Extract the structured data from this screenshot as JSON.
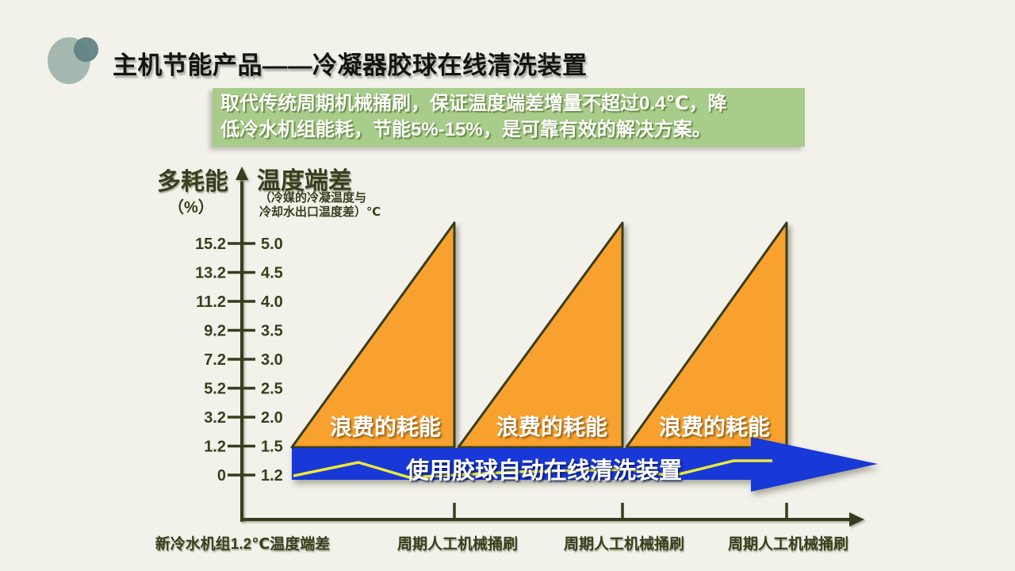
{
  "slide": {
    "title": "主机节能产品——冷凝器胶球在线清洗装置",
    "intro_line1": "取代传统周期机械捅刷，保证温度端差增量不超过0.4℃，降",
    "intro_line2": "低冷水机组能耗，节能5%-15%，是可靠有效的解决方案。"
  },
  "chart": {
    "left_axis_title": "多耗能",
    "left_axis_unit": "（%）",
    "right_axis_title": "温度端差",
    "right_axis_note1": "（冷媒的冷凝温度与",
    "right_axis_note2": "冷却水出口温度差）℃",
    "left_ticks": [
      "15.2",
      "13.2",
      "11.2",
      "9.2",
      "7.2",
      "5.2",
      "3.2",
      "1.2",
      "0"
    ],
    "right_ticks": [
      "5.0",
      "4.5",
      "4.0",
      "3.5",
      "3.0",
      "2.5",
      "2.0",
      "1.5",
      "1.2"
    ],
    "triangle_label": "浪费的耗能",
    "arrow_label": "使用胶球自动在线清洗装置",
    "x_labels": [
      "新冷水机组1.2℃温度端差",
      "周期人工机械捅刷",
      "周期人工机械捅刷",
      "周期人工机械捅刷"
    ]
  },
  "chart_data": {
    "type": "area",
    "title": "",
    "y_axis_left": {
      "label": "多耗能（%）",
      "ticks": [
        15.2,
        13.2,
        11.2,
        9.2,
        7.2,
        5.2,
        3.2,
        1.2,
        0
      ]
    },
    "y_axis_right": {
      "label": "温度端差（冷媒的冷凝温度与冷却水出口温度差）℃",
      "ticks": [
        5.0,
        4.5,
        4.0,
        3.5,
        3.0,
        2.5,
        2.0,
        1.5,
        1.2
      ]
    },
    "tick_pairs_left_right": [
      [
        15.2,
        5.0
      ],
      [
        13.2,
        4.5
      ],
      [
        11.2,
        4.0
      ],
      [
        9.2,
        3.5
      ],
      [
        7.2,
        3.0
      ],
      [
        5.2,
        2.5
      ],
      [
        3.2,
        2.0
      ],
      [
        1.2,
        1.5
      ],
      [
        0,
        1.2
      ]
    ],
    "series": [
      {
        "name": "周期人工机械捅刷（浪费的耗能）",
        "shape": "sawtooth",
        "cycles": 3,
        "rise_from_temp": 1.5,
        "rise_to_temp": 5.0,
        "extra_energy_pct_at_peak": 15.2,
        "area_label": "浪费的耗能",
        "reset_event_labels": [
          "周期人工机械捅刷",
          "周期人工机械捅刷",
          "周期人工机械捅刷"
        ]
      },
      {
        "name": "使用胶球自动在线清洗装置",
        "shape": "steady_line",
        "steady_temp": 1.2
      }
    ],
    "x_axis": {
      "origin_label": "新冷水机组1.2℃温度端差"
    },
    "legend_position": "none",
    "grid": false
  },
  "colors": {
    "background": "#F2F1EA",
    "accent_orange": "#F8A12F",
    "accent_blue": "#1838D8",
    "accent_green": "#A8CC8A",
    "axis_dark": "#373D1C",
    "line_yellow": "#E9E93B",
    "logo_sage": "#A4B8B0",
    "logo_teal": "#5E8080"
  }
}
